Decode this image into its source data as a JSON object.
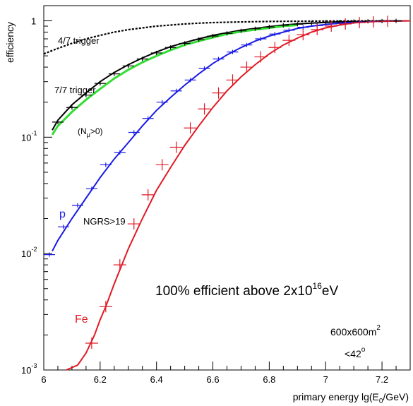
{
  "chart_data": {
    "type": "line",
    "x_label": "primary energy lg(E",
    "x_label_sub": "0",
    "x_label_end": "/GeV)",
    "y_label": "efficiency",
    "x_range": [
      6.0,
      7.3
    ],
    "y_range": [
      0.001,
      1.35
    ],
    "y_scale": "log",
    "x_ticks": [
      "6",
      "6.2",
      "6.4",
      "6.6",
      "6.8",
      "7",
      "7.2"
    ],
    "y_ticks": [
      {
        "base": "10",
        "exp": "-3",
        "value": 0.001
      },
      {
        "base": "10",
        "exp": "-2",
        "value": 0.01
      },
      {
        "base": "10",
        "exp": "-1",
        "value": 0.1
      },
      {
        "base": "1",
        "exp": "",
        "value": 1
      }
    ],
    "colors": {
      "trigger47": "#000000",
      "trigger77": "#000000",
      "nmu": "#33dd33",
      "p": "#1a1ae6",
      "fe": "#e01a24",
      "axis": "#000000"
    },
    "series": [
      {
        "key": "trigger47",
        "style": "dashed",
        "x": [
          6.0,
          6.05,
          6.1,
          6.15,
          6.2,
          6.25,
          6.3,
          6.35,
          6.4,
          6.45,
          6.5,
          6.55,
          6.6,
          6.65,
          6.7,
          6.75,
          6.8,
          6.85,
          6.9,
          6.95,
          7.0,
          7.05,
          7.1,
          7.15,
          7.2,
          7.25
        ],
        "y": [
          0.52,
          0.58,
          0.64,
          0.7,
          0.75,
          0.8,
          0.84,
          0.87,
          0.9,
          0.92,
          0.94,
          0.955,
          0.965,
          0.972,
          0.978,
          0.983,
          0.987,
          0.99,
          0.992,
          0.994,
          0.996,
          0.997,
          0.998,
          0.999,
          1.0,
          1.0
        ]
      },
      {
        "key": "trigger77",
        "style": "solid",
        "x": [
          6.03,
          6.05,
          6.1,
          6.15,
          6.2,
          6.25,
          6.3,
          6.35,
          6.4,
          6.45,
          6.5,
          6.55,
          6.6,
          6.65,
          6.7,
          6.75,
          6.8,
          6.85,
          6.9,
          6.95,
          7.0,
          7.05,
          7.1,
          7.15,
          7.2,
          7.25,
          7.3
        ],
        "y": [
          0.115,
          0.14,
          0.19,
          0.24,
          0.3,
          0.36,
          0.42,
          0.48,
          0.54,
          0.6,
          0.65,
          0.7,
          0.75,
          0.79,
          0.83,
          0.86,
          0.89,
          0.92,
          0.94,
          0.955,
          0.97,
          0.98,
          0.985,
          0.99,
          0.995,
          0.998,
          1.0
        ]
      },
      {
        "key": "nmu",
        "style": "solid",
        "x": [
          6.03,
          6.05,
          6.1,
          6.15,
          6.2,
          6.25,
          6.3,
          6.35,
          6.4,
          6.45,
          6.5,
          6.55,
          6.6,
          6.65,
          6.7,
          6.75,
          6.8,
          6.85,
          6.9
        ],
        "y": [
          0.105,
          0.125,
          0.165,
          0.21,
          0.26,
          0.32,
          0.38,
          0.44,
          0.5,
          0.56,
          0.62,
          0.67,
          0.72,
          0.77,
          0.81,
          0.84,
          0.87,
          0.9,
          0.92
        ]
      },
      {
        "key": "p",
        "style": "solid",
        "x": [
          6.03,
          6.05,
          6.1,
          6.15,
          6.2,
          6.25,
          6.3,
          6.35,
          6.4,
          6.45,
          6.5,
          6.55,
          6.6,
          6.65,
          6.7,
          6.75,
          6.8,
          6.85,
          6.9,
          6.95,
          7.0,
          7.05,
          7.1,
          7.15,
          7.2,
          7.25,
          7.3
        ],
        "y": [
          0.0105,
          0.013,
          0.02,
          0.03,
          0.045,
          0.065,
          0.09,
          0.125,
          0.17,
          0.22,
          0.28,
          0.35,
          0.43,
          0.51,
          0.59,
          0.67,
          0.74,
          0.8,
          0.86,
          0.9,
          0.93,
          0.955,
          0.97,
          0.982,
          0.99,
          0.996,
          1.0
        ]
      },
      {
        "key": "fe",
        "style": "solid",
        "x": [
          6.08,
          6.12,
          6.15,
          6.18,
          6.2,
          6.22,
          6.25,
          6.3,
          6.35,
          6.4,
          6.45,
          6.5,
          6.55,
          6.6,
          6.65,
          6.7,
          6.75,
          6.8,
          6.85,
          6.9,
          6.95,
          7.0,
          7.05,
          7.1,
          7.15,
          7.2,
          7.25,
          7.3
        ],
        "y": [
          0.001,
          0.0011,
          0.0014,
          0.002,
          0.0027,
          0.0035,
          0.0055,
          0.011,
          0.02,
          0.035,
          0.055,
          0.085,
          0.125,
          0.18,
          0.25,
          0.33,
          0.42,
          0.52,
          0.62,
          0.71,
          0.8,
          0.87,
          0.92,
          0.96,
          0.98,
          0.99,
          0.997,
          1.0
        ]
      }
    ],
    "points": [
      {
        "key": "trigger77",
        "x": [
          6.05,
          6.1,
          6.15,
          6.2,
          6.25,
          6.3,
          6.35,
          6.4,
          6.45,
          6.5,
          6.55,
          6.6,
          6.65,
          6.7,
          6.75,
          6.8,
          6.85,
          6.9,
          6.95,
          7.0,
          7.05,
          7.1,
          7.15,
          7.2,
          7.25
        ],
        "y": [
          0.135,
          0.18,
          0.23,
          0.29,
          0.35,
          0.41,
          0.47,
          0.53,
          0.59,
          0.64,
          0.69,
          0.74,
          0.78,
          0.82,
          0.855,
          0.885,
          0.915,
          0.935,
          0.955,
          0.97,
          0.98,
          0.985,
          0.99,
          0.995,
          0.998
        ]
      },
      {
        "key": "p",
        "x": [
          6.02,
          6.07,
          6.12,
          6.17,
          6.22,
          6.27,
          6.32,
          6.37,
          6.42,
          6.47,
          6.52,
          6.57,
          6.62,
          6.67,
          6.72,
          6.77,
          6.82,
          6.87,
          6.92,
          6.97,
          7.02,
          7.07,
          7.12,
          7.17,
          7.22
        ],
        "y": [
          0.0098,
          0.017,
          0.026,
          0.036,
          0.058,
          0.074,
          0.11,
          0.145,
          0.2,
          0.25,
          0.31,
          0.39,
          0.47,
          0.54,
          0.62,
          0.7,
          0.77,
          0.83,
          0.88,
          0.91,
          0.94,
          0.96,
          0.975,
          0.985,
          0.993
        ]
      },
      {
        "key": "fe",
        "x": [
          6.17,
          6.22,
          6.27,
          6.32,
          6.37,
          6.42,
          6.47,
          6.52,
          6.57,
          6.62,
          6.67,
          6.72,
          6.77,
          6.82,
          6.87,
          6.92,
          6.97,
          7.02,
          7.07,
          7.12,
          7.17,
          7.22
        ],
        "y": [
          0.0017,
          0.0035,
          0.008,
          0.018,
          0.032,
          0.058,
          0.082,
          0.12,
          0.175,
          0.24,
          0.31,
          0.4,
          0.49,
          0.59,
          0.68,
          0.76,
          0.84,
          0.9,
          0.94,
          0.965,
          0.98,
          0.99
        ]
      }
    ],
    "annotations": {
      "trigger47": "4/7 trigger",
      "trigger77": "7/7 trigger",
      "nmu_open": "(N",
      "nmu_sub": "μ",
      "nmu_close": ">0)",
      "p": "p",
      "ngrs": "NGRS>19",
      "fe": "Fe",
      "efficient_main": "100% efficient above  2x10",
      "efficient_exp": "16",
      "efficient_unit": "eV",
      "area_main": "600x600m",
      "area_exp": "2",
      "angle_main": "<42",
      "angle_exp": "o"
    }
  }
}
